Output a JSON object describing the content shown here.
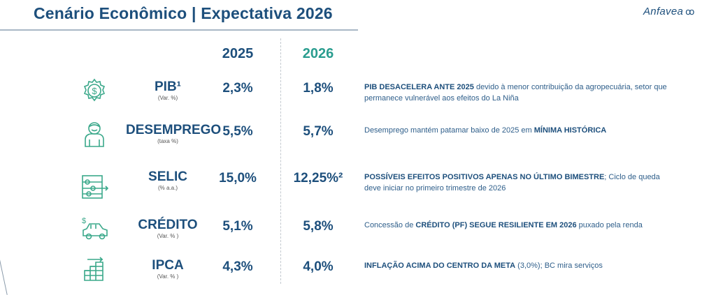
{
  "header": {
    "title": "Cenário Econômico  | Expectativa 2026",
    "logo_text": "Anfavea"
  },
  "columns": {
    "y2025": "2025",
    "y2026": "2026"
  },
  "colors": {
    "primary": "#1d4f7c",
    "accent": "#2a9d8f",
    "icon": "#3aa88a"
  },
  "rows": [
    {
      "icon": "gear-dollar-icon",
      "name": "PIB¹",
      "unit": "(Var. %)",
      "v2025": "2,3%",
      "v2026": "1,8%",
      "desc": [
        {
          "text": "PIB DESACELERA ANTE 2025",
          "bold": true
        },
        {
          "text": " devido à menor contribuição da agropecuária, setor que permanece vulnerável aos efeitos do La Niña",
          "bold": false
        }
      ]
    },
    {
      "icon": "person-icon",
      "name": "DESEMPREGO",
      "unit": "(taxa %)",
      "v2025": "5,5%",
      "v2026": "5,7%",
      "desc": [
        {
          "text": "Desemprego mantém patamar baixo de 2025 em ",
          "bold": false
        },
        {
          "text": "MÍNIMA HISTÓRICA",
          "bold": true
        }
      ]
    },
    {
      "icon": "abacus-icon",
      "name": "SELIC",
      "unit": "(% a.a.)",
      "v2025": "15,0%",
      "v2026": "12,25%²",
      "desc": [
        {
          "text": "POSSÍVEIS EFEITOS POSITIVOS APENAS NO ÚLTIMO BIMESTRE",
          "bold": true
        },
        {
          "text": "; Ciclo de queda deve iniciar no primeiro trimestre de 2026",
          "bold": false
        }
      ]
    },
    {
      "icon": "car-dollar-icon",
      "name": "CRÉDITO",
      "unit": "(Var. % )",
      "v2025": "5,1%",
      "v2026": "5,8%",
      "desc": [
        {
          "text": "Concessão de ",
          "bold": false
        },
        {
          "text": "CRÉDITO (PF) SEGUE RESILIENTE EM 2026",
          "bold": true
        },
        {
          "text": " puxado pela renda",
          "bold": false
        }
      ]
    },
    {
      "icon": "stacked-growth-icon",
      "name": "IPCA",
      "unit": "(Var. % )",
      "v2025": "4,3%",
      "v2026": "4,0%",
      "desc": [
        {
          "text": "INFLAÇÃO ACIMA DO CENTRO DA META",
          "bold": true
        },
        {
          "text": " (3,0%); BC mira serviços",
          "bold": false
        }
      ]
    }
  ]
}
